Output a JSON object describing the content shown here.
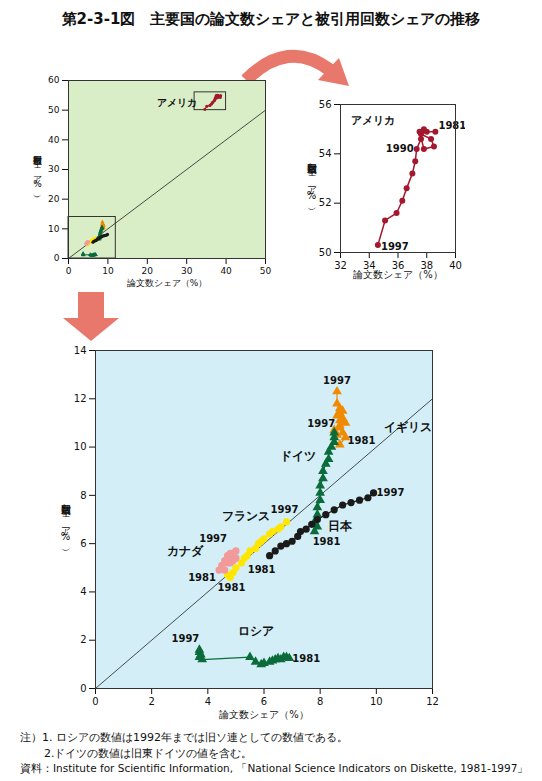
{
  "title": "第2-3-1図　主要国の論文数シェアと被引用回数シェアの推移",
  "chart_data": [
    {
      "type": "line",
      "x_label": "論文数シェア（%）",
      "y_label": "被引用回数シェア（%）",
      "xlim": [
        0,
        50
      ],
      "ylim": [
        0,
        60
      ],
      "xticks": [
        0,
        10,
        20,
        30,
        40,
        50
      ],
      "yticks": [
        0,
        10,
        20,
        30,
        40,
        50,
        60
      ],
      "annotations": [
        {
          "text": "アメリカ",
          "series": "アメリカ"
        }
      ],
      "series": [
        {
          "name": "アメリカ",
          "color": "#a3182e",
          "marker": "circle",
          "x": [
            38.6,
            38.0,
            37.6,
            38.3,
            38.5,
            37.8,
            37.5,
            37.8,
            37.6,
            37.3,
            37.2,
            37.0,
            36.6,
            36.3,
            35.9,
            35.1,
            34.6
          ],
          "values": [
            54.9,
            54.9,
            54.8,
            54.6,
            54.3,
            54.2,
            54.9,
            55.0,
            54.6,
            54.2,
            53.7,
            53.2,
            52.6,
            52.1,
            51.6,
            51.3,
            50.3
          ]
        },
        {
          "name": "イギリス",
          "color": "#f08a00",
          "marker": "triangle",
          "x": [
            8.9,
            8.7,
            8.5,
            8.6,
            8.8,
            8.7,
            8.5,
            8.7,
            8.9,
            8.8,
            8.7,
            8.6,
            8.7,
            8.8,
            8.7,
            8.6,
            8.6
          ],
          "values": [
            10.4,
            10.1,
            10.2,
            10.5,
            10.6,
            10.8,
            10.7,
            10.9,
            11.0,
            11.2,
            11.1,
            11.3,
            11.4,
            11.5,
            11.6,
            11.8,
            12.3
          ]
        },
        {
          "name": "ドイツ",
          "color": "#0b6b3a",
          "marker": "triangle",
          "x": [
            7.8,
            7.9,
            7.8,
            7.9,
            7.9,
            8.0,
            8.0,
            8.0,
            8.1,
            8.1,
            8.2,
            8.3,
            8.3,
            8.4,
            8.5,
            8.5,
            8.5
          ],
          "values": [
            6.5,
            6.7,
            6.9,
            7.2,
            7.5,
            7.8,
            8.1,
            8.4,
            8.7,
            9.0,
            9.3,
            9.5,
            9.8,
            10.0,
            10.2,
            10.4,
            10.6
          ]
        },
        {
          "name": "フランス",
          "color": "#ffe600",
          "marker": "circle",
          "x": [
            4.7,
            4.8,
            4.9,
            5.0,
            5.2,
            5.3,
            5.4,
            5.5,
            5.7,
            5.8,
            5.9,
            6.0,
            6.2,
            6.3,
            6.5,
            6.6,
            6.8
          ],
          "values": [
            4.7,
            4.6,
            4.8,
            5.0,
            5.2,
            5.4,
            5.5,
            5.7,
            5.8,
            6.0,
            6.1,
            6.2,
            6.4,
            6.5,
            6.6,
            6.7,
            6.9
          ]
        },
        {
          "name": "カナダ",
          "color": "#f29a9a",
          "marker": "circle",
          "x": [
            4.4,
            4.5,
            4.6,
            4.5,
            4.7,
            4.6,
            4.8,
            4.9,
            4.7,
            4.8,
            5.0,
            4.9,
            4.8,
            4.7,
            4.9,
            5.0,
            4.9
          ],
          "values": [
            4.9,
            5.0,
            4.9,
            5.1,
            5.2,
            5.3,
            5.2,
            5.3,
            5.4,
            5.5,
            5.4,
            5.5,
            5.6,
            5.5,
            5.6,
            5.7,
            5.6
          ]
        },
        {
          "name": "日本",
          "color": "#1a1a1a",
          "marker": "circle",
          "x": [
            6.2,
            6.4,
            6.6,
            6.8,
            7.0,
            7.2,
            7.3,
            7.5,
            7.7,
            7.9,
            8.2,
            8.5,
            8.8,
            9.1,
            9.4,
            9.7,
            9.9
          ],
          "values": [
            5.5,
            5.7,
            5.9,
            6.0,
            6.1,
            6.3,
            6.5,
            6.6,
            6.8,
            7.0,
            7.2,
            7.4,
            7.6,
            7.7,
            7.8,
            7.9,
            8.1
          ]
        },
        {
          "name": "ロシア",
          "color": "#0b6b3a",
          "marker": "triangle",
          "x": [
            6.9,
            6.8,
            6.6,
            6.7,
            6.5,
            6.4,
            6.3,
            6.2,
            6.0,
            5.9,
            5.7,
            5.5,
            3.8,
            3.7,
            3.75,
            3.7,
            3.7
          ],
          "values": [
            1.25,
            1.3,
            1.2,
            1.3,
            1.25,
            1.2,
            1.15,
            1.1,
            1.05,
            1.0,
            1.1,
            1.3,
            1.2,
            1.3,
            1.4,
            1.5,
            1.6
          ]
        }
      ]
    },
    {
      "type": "line",
      "x_label": "論文数シェア（%）",
      "y_label": "被引用回数シェア（%）",
      "xlim": [
        32,
        40
      ],
      "ylim": [
        50,
        56
      ],
      "xticks": [
        32,
        34,
        36,
        38,
        40
      ],
      "yticks": [
        50,
        52,
        54,
        56
      ],
      "annotations": [
        {
          "text": "アメリカ",
          "series": "アメリカ"
        }
      ],
      "series": [
        {
          "name": "アメリカ",
          "color": "#a3182e",
          "marker": "circle",
          "x": [
            38.6,
            38.0,
            37.6,
            38.3,
            38.5,
            37.8,
            37.5,
            37.8,
            37.6,
            37.3,
            37.2,
            37.0,
            36.6,
            36.3,
            35.9,
            35.1,
            34.6
          ],
          "values": [
            54.9,
            54.9,
            54.8,
            54.6,
            54.3,
            54.2,
            54.9,
            55.0,
            54.6,
            54.2,
            53.7,
            53.2,
            52.6,
            52.1,
            51.6,
            51.3,
            50.3
          ],
          "point_labels": [
            "1981",
            null,
            null,
            null,
            null,
            null,
            null,
            null,
            null,
            "1990",
            null,
            null,
            null,
            null,
            null,
            null,
            "1997"
          ]
        }
      ]
    },
    {
      "type": "line",
      "x_label": "論文数シェア（%）",
      "y_label": "被引用回数シェア（%）",
      "xlim": [
        0,
        12
      ],
      "ylim": [
        0,
        14
      ],
      "xticks": [
        0,
        2,
        4,
        6,
        8,
        10,
        12
      ],
      "yticks": [
        0,
        2,
        4,
        6,
        8,
        10,
        12,
        14
      ],
      "annotations": [
        {
          "text": "イギリス",
          "series": "イギリス"
        },
        {
          "text": "ドイツ",
          "series": "ドイツ"
        },
        {
          "text": "フランス",
          "series": "フランス"
        },
        {
          "text": "カナダ",
          "series": "カナダ"
        },
        {
          "text": "日本",
          "series": "日本"
        },
        {
          "text": "ロシア",
          "series": "ロシア"
        }
      ],
      "series": [
        {
          "name": "イギリス",
          "color": "#f08a00",
          "marker": "triangle",
          "x": [
            8.9,
            8.7,
            8.5,
            8.6,
            8.8,
            8.7,
            8.5,
            8.7,
            8.9,
            8.8,
            8.7,
            8.6,
            8.7,
            8.8,
            8.7,
            8.6,
            8.6
          ],
          "values": [
            10.4,
            10.1,
            10.2,
            10.5,
            10.6,
            10.8,
            10.7,
            10.9,
            11.0,
            11.2,
            11.1,
            11.3,
            11.4,
            11.5,
            11.6,
            11.8,
            12.3
          ],
          "point_labels": [
            "1981",
            null,
            null,
            null,
            null,
            null,
            null,
            null,
            null,
            null,
            null,
            null,
            null,
            null,
            null,
            null,
            "1997"
          ]
        },
        {
          "name": "ドイツ",
          "color": "#0b6b3a",
          "marker": "triangle",
          "x": [
            7.8,
            7.9,
            7.8,
            7.9,
            7.9,
            8.0,
            8.0,
            8.0,
            8.1,
            8.1,
            8.2,
            8.3,
            8.3,
            8.4,
            8.5,
            8.5,
            8.5
          ],
          "values": [
            6.5,
            6.7,
            6.9,
            7.2,
            7.5,
            7.8,
            8.1,
            8.4,
            8.7,
            9.0,
            9.3,
            9.5,
            9.8,
            10.0,
            10.2,
            10.4,
            10.6
          ],
          "point_labels": [
            "1981",
            null,
            null,
            null,
            null,
            null,
            null,
            null,
            null,
            null,
            null,
            null,
            null,
            null,
            null,
            null,
            "1997"
          ]
        },
        {
          "name": "フランス",
          "color": "#ffe600",
          "marker": "circle",
          "x": [
            4.7,
            4.8,
            4.9,
            5.0,
            5.2,
            5.3,
            5.4,
            5.5,
            5.7,
            5.8,
            5.9,
            6.0,
            6.2,
            6.3,
            6.5,
            6.6,
            6.8
          ],
          "values": [
            4.7,
            4.6,
            4.8,
            5.0,
            5.2,
            5.4,
            5.5,
            5.7,
            5.8,
            6.0,
            6.1,
            6.2,
            6.4,
            6.5,
            6.6,
            6.7,
            6.9
          ],
          "point_labels": [
            "1981",
            null,
            null,
            null,
            null,
            null,
            null,
            null,
            null,
            null,
            null,
            null,
            null,
            null,
            null,
            null,
            "1997"
          ]
        },
        {
          "name": "カナダ",
          "color": "#f29a9a",
          "marker": "circle",
          "x": [
            4.4,
            4.5,
            4.6,
            4.5,
            4.7,
            4.6,
            4.8,
            4.9,
            4.7,
            4.8,
            5.0,
            4.9,
            4.8,
            4.7,
            4.9,
            5.0,
            4.9
          ],
          "values": [
            4.9,
            5.0,
            4.9,
            5.1,
            5.2,
            5.3,
            5.2,
            5.3,
            5.4,
            5.5,
            5.4,
            5.5,
            5.6,
            5.5,
            5.6,
            5.7,
            5.6
          ],
          "point_labels": [
            "1981",
            null,
            null,
            null,
            null,
            null,
            null,
            null,
            null,
            null,
            null,
            null,
            null,
            null,
            null,
            null,
            "1997"
          ]
        },
        {
          "name": "日本",
          "color": "#1a1a1a",
          "marker": "circle",
          "x": [
            6.2,
            6.4,
            6.6,
            6.8,
            7.0,
            7.2,
            7.3,
            7.5,
            7.7,
            7.9,
            8.2,
            8.5,
            8.8,
            9.1,
            9.4,
            9.7,
            9.9
          ],
          "values": [
            5.5,
            5.7,
            5.9,
            6.0,
            6.1,
            6.3,
            6.5,
            6.6,
            6.8,
            7.0,
            7.2,
            7.4,
            7.6,
            7.7,
            7.8,
            7.9,
            8.1
          ],
          "point_labels": [
            "1981",
            null,
            null,
            null,
            null,
            null,
            null,
            null,
            null,
            null,
            null,
            null,
            null,
            null,
            null,
            null,
            "1997"
          ]
        },
        {
          "name": "ロシア",
          "color": "#0b6b3a",
          "marker": "triangle",
          "x": [
            6.9,
            6.8,
            6.6,
            6.7,
            6.5,
            6.4,
            6.3,
            6.2,
            6.0,
            5.9,
            5.7,
            5.5,
            3.8,
            3.7,
            3.75,
            3.7,
            3.7
          ],
          "values": [
            1.25,
            1.3,
            1.2,
            1.3,
            1.25,
            1.2,
            1.15,
            1.1,
            1.05,
            1.0,
            1.1,
            1.3,
            1.2,
            1.3,
            1.4,
            1.5,
            1.6
          ],
          "point_labels": [
            "1981",
            null,
            null,
            null,
            null,
            null,
            null,
            null,
            null,
            null,
            null,
            null,
            null,
            null,
            null,
            null,
            "1997"
          ]
        }
      ]
    }
  ],
  "notes": [
    "注）1. ロシアの数値は1992年までは旧ソ連としての数値である。",
    "2.ドイツの数値は旧東ドイツの値を含む。"
  ],
  "source": "資料：Institute for Scientific Information, 「National Science Indicators on Diskette, 1981-1997」"
}
